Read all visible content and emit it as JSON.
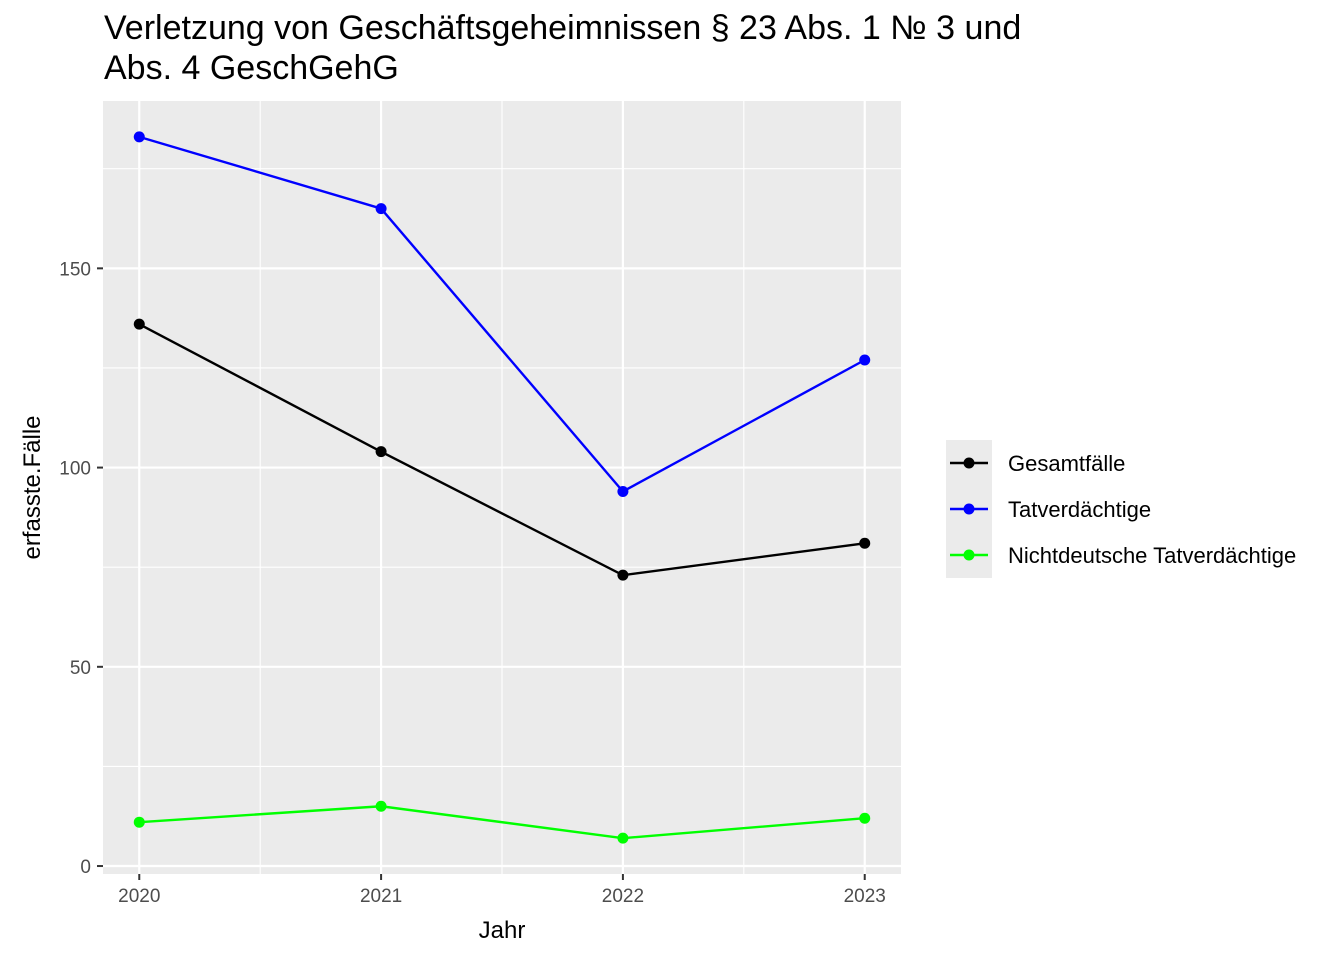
{
  "chart_data": {
    "type": "line",
    "title_lines": [
      "Verletzung von Geschäftsgeheimnissen § 23 Abs. 1 № 3 und",
      "Abs. 4 GeschGehG"
    ],
    "xlabel": "Jahr",
    "ylabel": "erfasste.Fälle",
    "x": [
      "2020",
      "2021",
      "2022",
      "2023"
    ],
    "xlim": [
      2019.85,
      2023.15
    ],
    "ylim": [
      -2,
      192
    ],
    "yticks": [
      0,
      50,
      100,
      150
    ],
    "ytick_labels": [
      "0",
      "50",
      "100",
      "150"
    ],
    "y_minor_ticks": [
      25,
      75,
      125,
      175
    ],
    "grid": true,
    "legend_position": "right",
    "series": [
      {
        "name": "Gesamtfälle",
        "color": "#000000",
        "values": [
          136,
          104,
          73,
          81
        ]
      },
      {
        "name": "Tatverdächtige",
        "color": "#0000ff",
        "values": [
          183,
          165,
          94,
          127
        ]
      },
      {
        "name": "Nichtdeutsche Tatverdächtige",
        "color": "#00ff00",
        "values": [
          11,
          15,
          7,
          12
        ]
      }
    ]
  }
}
